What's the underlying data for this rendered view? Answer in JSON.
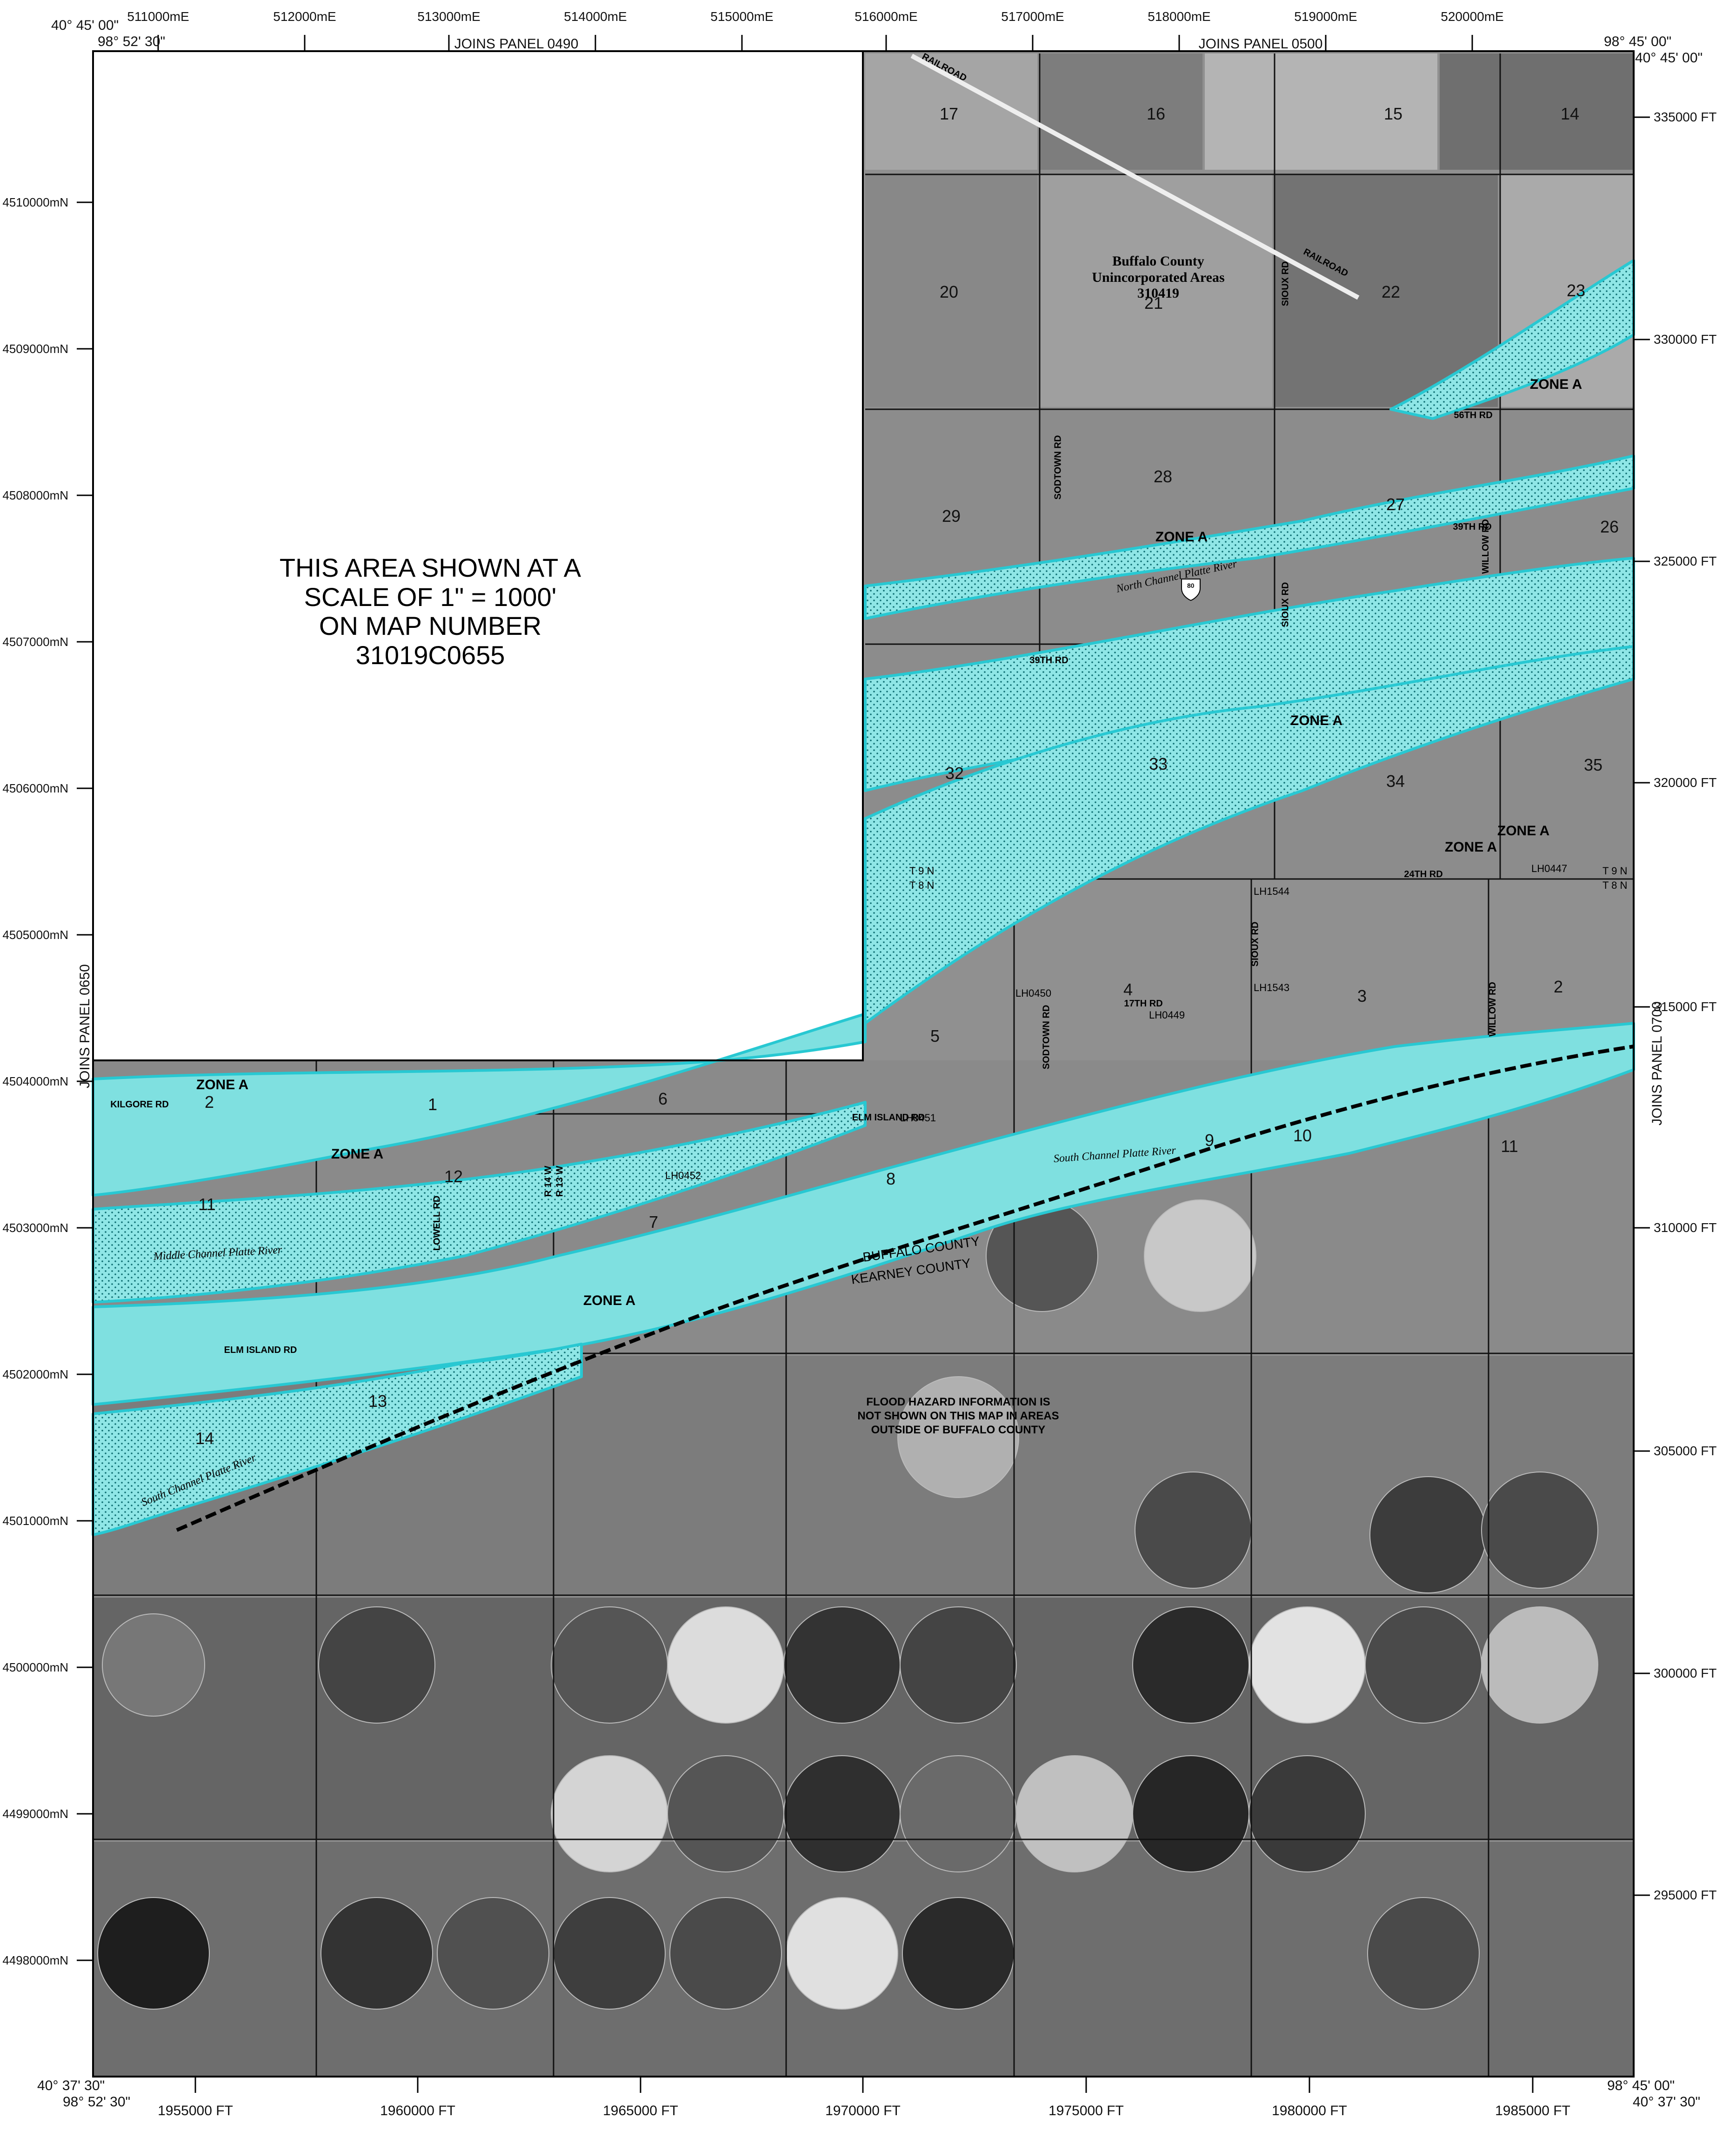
{
  "corners": {
    "top_left": "40° 45' 00\"",
    "top_left_lon": "98° 52' 30\"",
    "top_right_lon": "98° 45' 00\"",
    "top_right_lat": "40° 45' 00\"",
    "bottom_left_lat": "40° 37' 30\"",
    "bottom_left_lon": "98° 52' 30\"",
    "bottom_right_lon": "98° 45' 00\"",
    "bottom_right_lat": "40° 37' 30\""
  },
  "utm_easting_top": [
    "511000mE",
    "512000mE",
    "513000mE",
    "514000mE",
    "515000mE",
    "516000mE",
    "517000mE",
    "518000mE",
    "519000mE",
    "520000mE"
  ],
  "utm_northing_left": [
    "4510000mN",
    "4509000mN",
    "4508000mN",
    "4507000mN",
    "4506000mN",
    "4505000mN",
    "4504000mN",
    "4503000mN",
    "4502000mN",
    "4501000mN",
    "4500000mN",
    "4499000mN",
    "4498000mN"
  ],
  "state_plane_right": [
    "335000 FT",
    "330000 FT",
    "325000 FT",
    "320000 FT",
    "315000 FT",
    "310000 FT",
    "305000 FT",
    "300000 FT",
    "295000 FT"
  ],
  "state_plane_bottom": [
    "1955000 FT",
    "1960000 FT",
    "1965000 FT",
    "1970000 FT",
    "1975000 FT",
    "1980000 FT",
    "1985000 FT"
  ],
  "joins_panels": {
    "top_left": "JOINS PANEL 0490",
    "top_right": "JOINS PANEL 0500",
    "left": "JOINS PANEL 0650",
    "right": "JOINS PANEL 0700"
  },
  "inset_note": [
    "THIS AREA SHOWN AT A",
    "SCALE OF 1\" = 1000'",
    "ON MAP NUMBER",
    "31019C0655"
  ],
  "community": [
    "Buffalo County",
    "Unincorporated Areas",
    "310419"
  ],
  "flood_note": [
    "FLOOD HAZARD INFORMATION IS",
    "NOT SHOWN ON THIS MAP IN AREAS",
    "OUTSIDE OF BUFFALO COUNTY"
  ],
  "sections": [
    "17",
    "16",
    "15",
    "14",
    "20",
    "21",
    "22",
    "23",
    "28",
    "27",
    "26",
    "29",
    "32",
    "33",
    "34",
    "35",
    "4",
    "3",
    "2",
    "5",
    "1",
    "6",
    "12",
    "11",
    "8",
    "9",
    "10",
    "11",
    "2",
    "7",
    "13",
    "14"
  ],
  "zone_label": "ZONE A",
  "roads": {
    "railroad": "RAILROAD",
    "rd56": "56TH RD",
    "rd39": "39TH RD",
    "rd24": "24TH RD",
    "rd17": "17TH RD",
    "sodtown": "SODTOWN RD",
    "sioux": "SIOUX RD",
    "willow": "WILLOW RD",
    "lowell": "LOWELL RD",
    "kilgore": "KILGORE RD",
    "elm_island": "ELM ISLAND RD",
    "r14w": "R 14 W",
    "r13w": "R 13 W"
  },
  "rivers": {
    "north": "North Channel Platte River",
    "south": "South Channel Platte River",
    "middle": "Middle Channel Platte River"
  },
  "counties": {
    "buffalo": "BUFFALO COUNTY",
    "kearney": "KEARNEY COUNTY"
  },
  "townships": {
    "t9n": "T 9 N",
    "t8n": "T 8 N"
  },
  "benchmarks": [
    "LH1544",
    "LH1543",
    "LH0450",
    "LH0449",
    "LH0447",
    "LH0451",
    "LH0452"
  ],
  "interstate_shield": "80",
  "colors": {
    "flood_zone": "#7fe0e0",
    "flood_outline": "#28c8d2",
    "imagery_dark": "#3a3a3a",
    "imagery_light": "#cfcfcf"
  }
}
